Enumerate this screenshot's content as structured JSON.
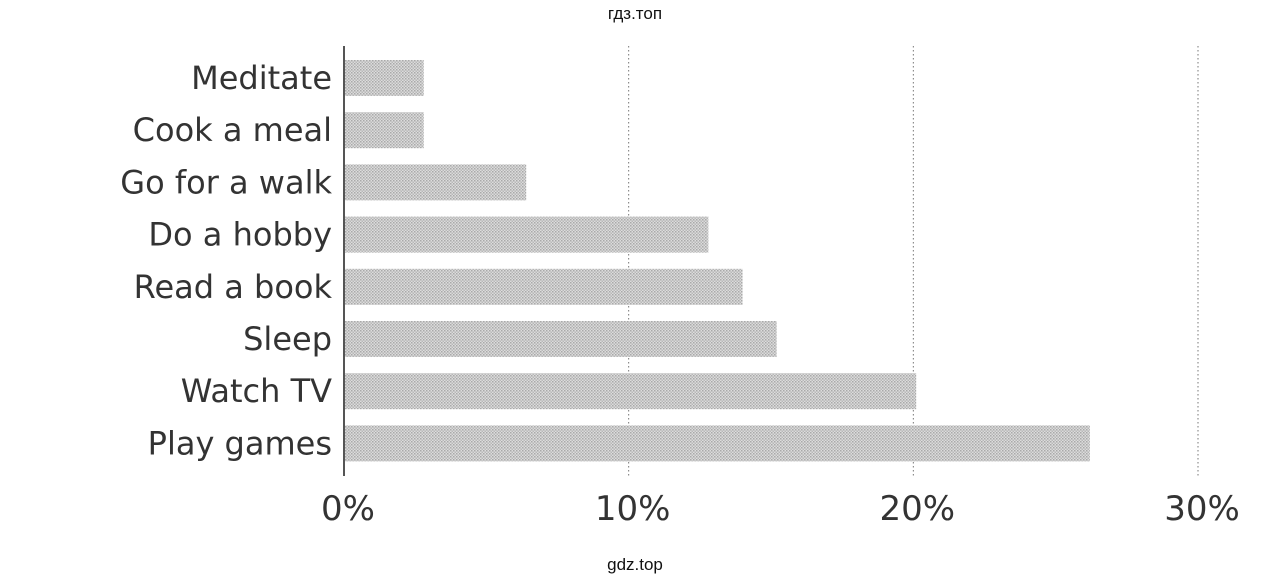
{
  "watermarks": {
    "top": "гдз.топ",
    "bottom": "gdz.top"
  },
  "colors": {
    "bar": "#c9c9c9",
    "text": "#333333",
    "axis": "#555555",
    "grid": "#777777"
  },
  "chart_data": {
    "type": "bar",
    "orientation": "horizontal",
    "categories": [
      "Meditate",
      "Cook a meal",
      "Go for a walk",
      "Do a hobby",
      "Read a book",
      "Sleep",
      "Watch TV",
      "Play games"
    ],
    "values": [
      2.8,
      2.8,
      6.4,
      12.8,
      14.0,
      15.2,
      20.1,
      26.2
    ],
    "xlim": [
      0,
      30
    ],
    "xticks": [
      0,
      10,
      20,
      30
    ],
    "xtick_labels": [
      "0%",
      "10%",
      "20%",
      "30%"
    ],
    "grid": "vertical-dotted",
    "title": "",
    "xlabel": "",
    "ylabel": ""
  }
}
